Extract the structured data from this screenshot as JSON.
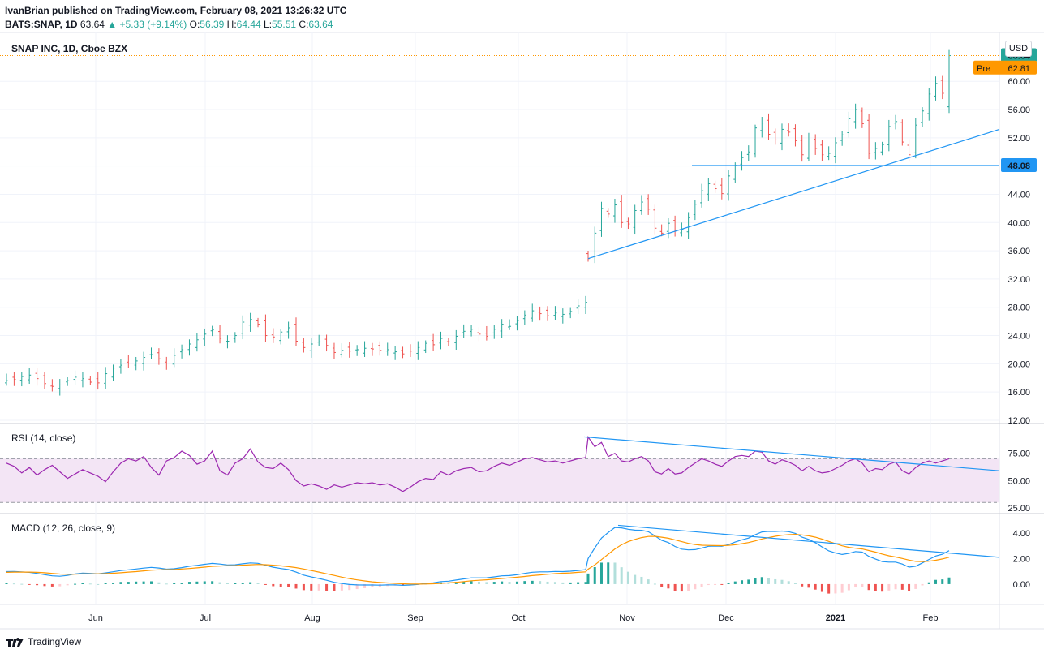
{
  "header": {
    "publisher": "IvanBrian published on TradingView.com, February 08, 2021 13:26:32 UTC",
    "symbol": "BATS:SNAP, 1D",
    "last": "63.64",
    "change": "+5.33 (+9.14%)",
    "o_label": "O:",
    "o_value": "56.39",
    "h_label": "H:",
    "h_value": "64.44",
    "l_label": "L:",
    "l_value": "55.51",
    "c_label": "C:",
    "c_value": "63.64"
  },
  "main_title": "SNAP INC, 1D, Cboe BZX",
  "currency": "USD",
  "rsi_title": "RSI (14, close)",
  "macd_title": "MACD (12, 26, close, 9)",
  "footer_brand": "TradingView",
  "colors": {
    "up": "#26a69a",
    "down": "#ef5350",
    "line": "#2196f3",
    "rsi": "#9c27b0",
    "signal": "#ff9800",
    "pre": "#ff9800",
    "rsi_band": "#f3e5f5"
  },
  "chart_data": [
    {
      "type": "ohlc",
      "title": "SNAP INC, 1D, Cboe BZX",
      "price_axis": [
        "12.00",
        "16.00",
        "20.00",
        "24.00",
        "28.00",
        "32.00",
        "36.00",
        "40.00",
        "44.00",
        "48.00",
        "52.00",
        "56.00",
        "60.00"
      ],
      "ylim": [
        12,
        66
      ],
      "time_axis": [
        "Jun",
        "Jul",
        "Aug",
        "Sep",
        "Oct",
        "Nov",
        "Dec",
        "2021",
        "Feb"
      ],
      "closes_approx": [
        17.6,
        17.8,
        18.2,
        18.4,
        17.9,
        17.2,
        16.8,
        17.0,
        17.6,
        18.1,
        17.9,
        17.4,
        17.3,
        18.6,
        19.4,
        19.8,
        20.1,
        20.4,
        20.9,
        21.3,
        20.7,
        20.1,
        21.2,
        22.0,
        22.8,
        23.4,
        24.2,
        24.8,
        23.6,
        23.2,
        24.0,
        25.9,
        26.3,
        25.6,
        24.0,
        23.8,
        24.5,
        25.1,
        23.2,
        22.3,
        22.8,
        23.1,
        22.6,
        21.6,
        21.9,
        21.8,
        22.0,
        22.2,
        22.1,
        21.9,
        22.0,
        21.7,
        21.4,
        21.8,
        22.3,
        22.9,
        22.7,
        23.6,
        23.1,
        23.9,
        24.6,
        24.9,
        24.2,
        23.9,
        24.9,
        25.6,
        25.3,
        26.1,
        26.9,
        27.5,
        27.1,
        26.8,
        27.2,
        27.0,
        27.4,
        28.2,
        28.7,
        34.9,
        38.5,
        42.0,
        41.2,
        42.5,
        40.0,
        39.8,
        41.7,
        42.9,
        41.9,
        39.2,
        38.5,
        39.9,
        38.9,
        39.0,
        40.7,
        42.6,
        44.5,
        45.5,
        44.8,
        44.1,
        46.6,
        48.1,
        49.2,
        50.0,
        53.4,
        54.1,
        52.5,
        51.7,
        53.2,
        52.8,
        51.6,
        49.6,
        51.7,
        50.5,
        49.6,
        49.8,
        51.3,
        52.4,
        54.7,
        56.0,
        54.0,
        49.8,
        50.5,
        51.0,
        53.6,
        54.3,
        51.4,
        49.6,
        53.8,
        55.8,
        58.2,
        59.7,
        58.3,
        63.64
      ],
      "last_price": {
        "value": "63.64",
        "label": "63.64"
      },
      "premarket": {
        "label": "Pre",
        "value": "62.81"
      },
      "horizontal_level": {
        "value": 48.08,
        "label": "48.08"
      },
      "trendline": {
        "from": [
          34.9,
          "Oct 20"
        ],
        "to": [
          53.0,
          "Feb 8+"
        ]
      }
    },
    {
      "type": "line",
      "title": "RSI (14, close)",
      "axis": [
        "25.00",
        "50.00",
        "75.00"
      ],
      "ylim": [
        22,
        100
      ],
      "band": [
        30,
        70
      ],
      "values_approx": [
        66,
        63,
        57,
        62,
        55,
        60,
        64,
        58,
        52,
        56,
        60,
        57,
        54,
        49,
        58,
        66,
        70,
        68,
        72,
        62,
        55,
        68,
        71,
        77,
        73,
        65,
        68,
        77,
        59,
        55,
        66,
        70,
        79,
        67,
        62,
        61,
        66,
        60,
        50,
        45,
        47,
        45,
        42,
        46,
        44,
        46,
        48,
        47,
        48,
        46,
        47,
        44,
        40,
        44,
        49,
        52,
        51,
        58,
        55,
        59,
        61,
        62,
        58,
        59,
        63,
        66,
        64,
        67,
        70,
        71,
        69,
        67,
        68,
        66,
        68,
        70,
        71,
        90,
        81,
        85,
        72,
        75,
        68,
        67,
        70,
        72,
        68,
        58,
        56,
        61,
        56,
        57,
        62,
        66,
        70,
        68,
        65,
        63,
        68,
        72,
        73,
        72,
        77,
        76,
        68,
        65,
        69,
        67,
        64,
        59,
        63,
        59,
        57,
        58,
        61,
        64,
        68,
        70,
        66,
        58,
        61,
        60,
        65,
        67,
        59,
        56,
        62,
        66,
        68,
        66,
        68,
        70
      ],
      "trendline": {
        "from": [
          90,
          "Oct 21"
        ],
        "to": [
          59,
          "Feb 8+"
        ]
      }
    },
    {
      "type": "macd",
      "title": "MACD (12, 26, close, 9)",
      "axis": [
        "0.00",
        "2.00",
        "4.00"
      ],
      "ylim": [
        -1.4,
        5.2
      ],
      "macd_approx": [
        0.98,
        0.99,
        0.96,
        0.92,
        0.84,
        0.74,
        0.65,
        0.62,
        0.68,
        0.8,
        0.86,
        0.84,
        0.81,
        0.88,
        0.97,
        1.06,
        1.12,
        1.18,
        1.25,
        1.31,
        1.26,
        1.17,
        1.2,
        1.29,
        1.4,
        1.47,
        1.55,
        1.62,
        1.57,
        1.5,
        1.51,
        1.59,
        1.66,
        1.63,
        1.47,
        1.32,
        1.22,
        1.14,
        0.94,
        0.71,
        0.56,
        0.44,
        0.3,
        0.14,
        0.05,
        -0.03,
        -0.06,
        -0.07,
        -0.07,
        -0.08,
        -0.06,
        -0.06,
        -0.09,
        -0.07,
        -0.02,
        0.06,
        0.1,
        0.2,
        0.23,
        0.32,
        0.41,
        0.49,
        0.49,
        0.5,
        0.57,
        0.65,
        0.67,
        0.74,
        0.84,
        0.93,
        0.96,
        0.96,
        0.99,
        0.98,
        1.01,
        1.07,
        1.13,
        2.0,
        2.83,
        3.6,
        4.03,
        4.43,
        4.4,
        4.29,
        4.22,
        4.21,
        4.1,
        3.77,
        3.43,
        3.25,
        2.95,
        2.74,
        2.68,
        2.7,
        2.82,
        2.96,
        2.98,
        2.96,
        3.09,
        3.29,
        3.46,
        3.6,
        3.86,
        4.08,
        4.13,
        4.12,
        4.15,
        4.1,
        3.97,
        3.67,
        3.5,
        3.24,
        2.91,
        2.6,
        2.43,
        2.32,
        2.4,
        2.55,
        2.5,
        2.17,
        1.96,
        1.76,
        1.72,
        1.72,
        1.57,
        1.33,
        1.4,
        1.66,
        1.93,
        2.2,
        2.34,
        2.62
      ],
      "signal_approx": [
        0.92,
        0.94,
        0.94,
        0.94,
        0.92,
        0.89,
        0.84,
        0.79,
        0.77,
        0.78,
        0.8,
        0.8,
        0.81,
        0.82,
        0.85,
        0.89,
        0.94,
        0.98,
        1.04,
        1.09,
        1.12,
        1.13,
        1.14,
        1.18,
        1.22,
        1.27,
        1.33,
        1.39,
        1.42,
        1.44,
        1.45,
        1.48,
        1.51,
        1.54,
        1.52,
        1.48,
        1.43,
        1.37,
        1.29,
        1.18,
        1.06,
        0.94,
        0.81,
        0.68,
        0.55,
        0.43,
        0.33,
        0.25,
        0.18,
        0.13,
        0.09,
        0.06,
        0.03,
        0.01,
        0.0,
        0.01,
        0.03,
        0.06,
        0.1,
        0.14,
        0.2,
        0.26,
        0.3,
        0.34,
        0.39,
        0.44,
        0.49,
        0.54,
        0.6,
        0.67,
        0.72,
        0.77,
        0.82,
        0.85,
        0.88,
        0.92,
        0.96,
        1.17,
        1.5,
        1.92,
        2.34,
        2.75,
        3.08,
        3.32,
        3.5,
        3.64,
        3.73,
        3.74,
        3.67,
        3.59,
        3.46,
        3.32,
        3.19,
        3.1,
        3.04,
        3.03,
        3.02,
        3.01,
        3.03,
        3.08,
        3.16,
        3.25,
        3.38,
        3.53,
        3.64,
        3.74,
        3.82,
        3.87,
        3.89,
        3.85,
        3.78,
        3.67,
        3.52,
        3.34,
        3.16,
        3.0,
        2.88,
        2.81,
        2.75,
        2.63,
        2.5,
        2.35,
        2.22,
        2.12,
        2.01,
        1.88,
        1.78,
        1.76,
        1.79,
        1.87,
        1.97,
        2.1
      ],
      "trendline": {
        "from": [
          4.6,
          "Oct 29"
        ],
        "to": [
          2.1,
          "Feb 8+"
        ]
      }
    }
  ]
}
